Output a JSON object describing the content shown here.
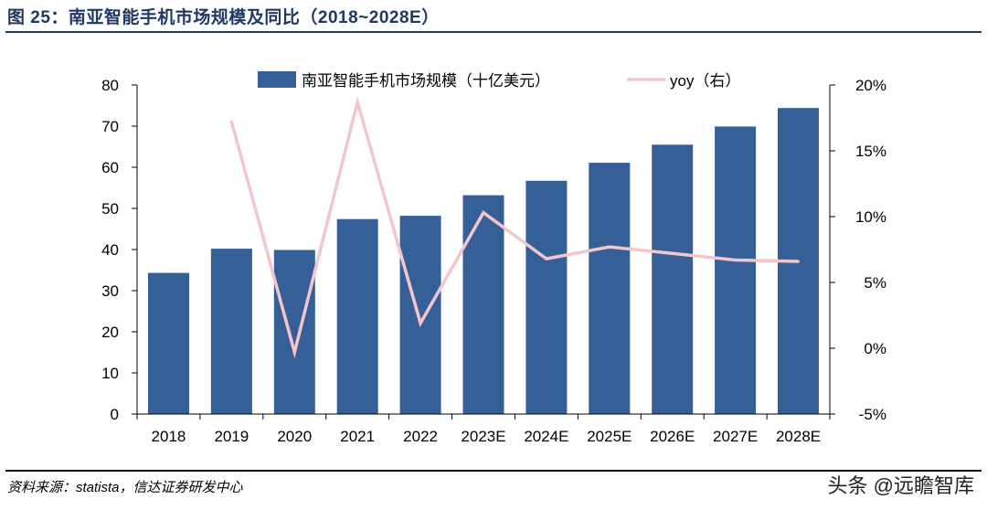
{
  "figure": {
    "title": "图 25：南亚智能手机市场规模及同比（2018~2028E）",
    "source": "资料来源：statista，信达证券研发中心",
    "watermark": "头条 @远瞻智库"
  },
  "colors": {
    "bar": "#346097",
    "line": "#f4c6cc",
    "title": "#1f3864",
    "axis": "#000000"
  },
  "chart_data": {
    "type": "bar",
    "categories": [
      "2018",
      "2019",
      "2020",
      "2021",
      "2022",
      "2023E",
      "2024E",
      "2025E",
      "2026E",
      "2027E",
      "2028E"
    ],
    "series": [
      {
        "name": "南亚智能手机市场规模（十亿美元）",
        "type": "bar",
        "axis": "left",
        "values": [
          34.3,
          40.2,
          39.9,
          47.4,
          48.2,
          53.2,
          56.7,
          61.1,
          65.5,
          69.9,
          74.4
        ]
      },
      {
        "name": "yoy（右）",
        "type": "line",
        "axis": "right",
        "values": [
          null,
          17.2,
          -0.3,
          18.7,
          1.9,
          10.3,
          6.8,
          7.7,
          7.2,
          6.7,
          6.6
        ]
      }
    ],
    "y_left": {
      "ylim": [
        0,
        80
      ],
      "ticks": [
        0,
        10,
        20,
        30,
        40,
        50,
        60,
        70,
        80
      ],
      "tick_labels": [
        "0",
        "10",
        "20",
        "30",
        "40",
        "50",
        "60",
        "70",
        "80"
      ]
    },
    "y_right": {
      "ylim": [
        -5,
        20
      ],
      "ticks": [
        -5,
        0,
        5,
        10,
        15,
        20
      ],
      "tick_labels": [
        "-5%",
        "0%",
        "5%",
        "10%",
        "15%",
        "20%"
      ]
    },
    "legend_position": "top",
    "grid": false
  }
}
